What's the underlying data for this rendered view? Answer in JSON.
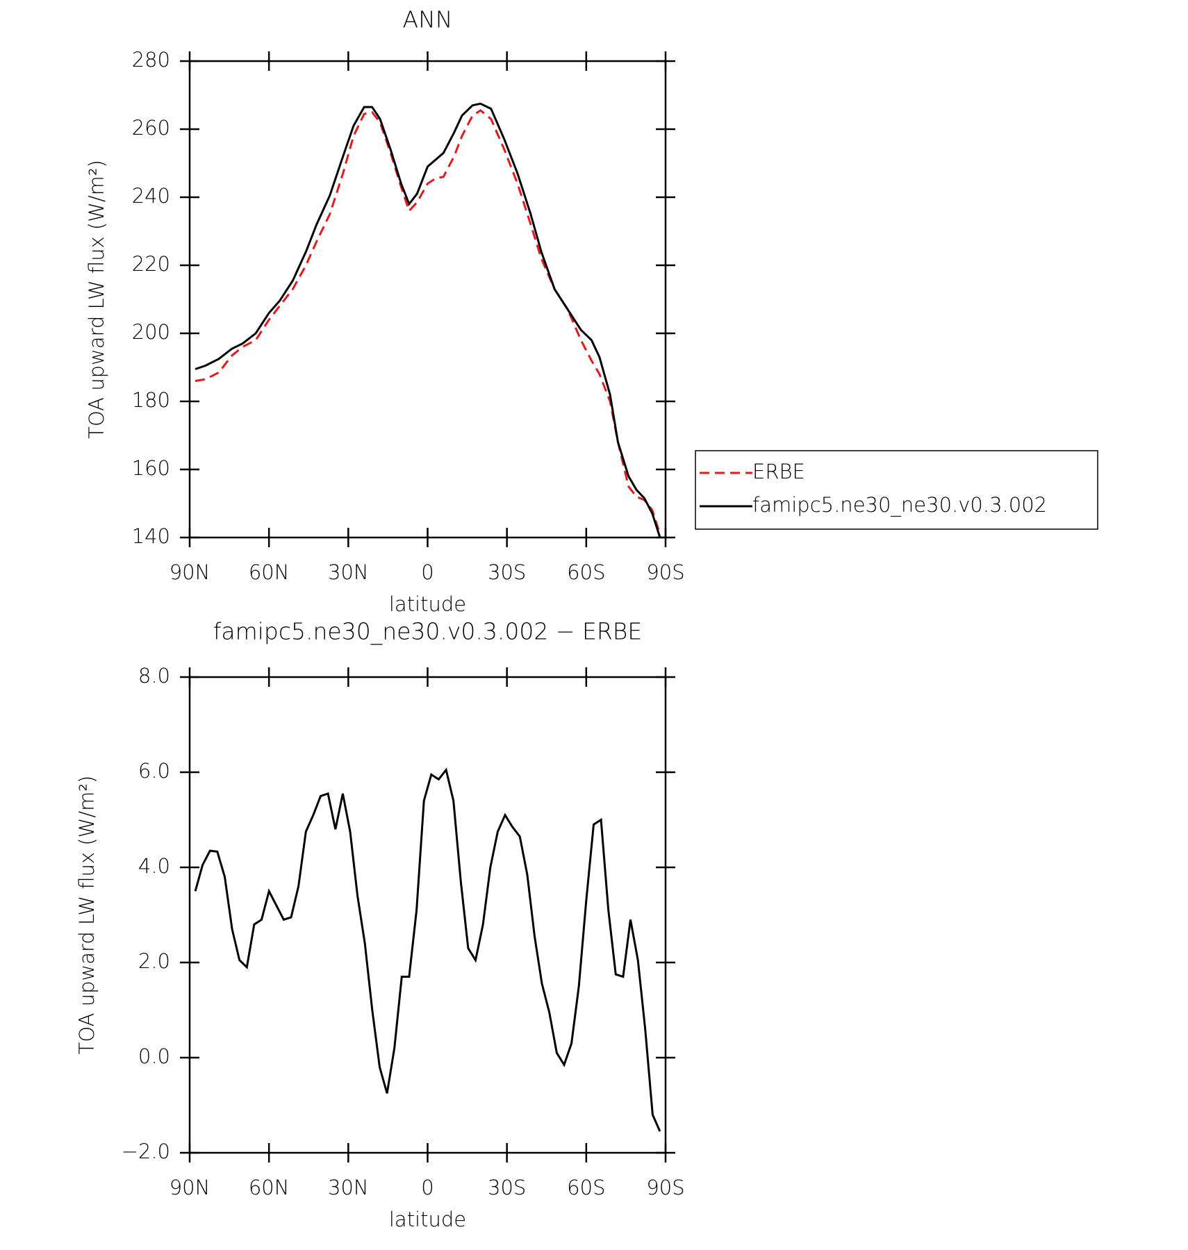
{
  "chart_data": [
    {
      "type": "line",
      "title": "ANN",
      "xlabel": "latitude",
      "ylabel": "TOA upward LW flux (W/m²)",
      "x": [
        87.9,
        84,
        79,
        74,
        70,
        65,
        60,
        56,
        51,
        46,
        42,
        37,
        32,
        28,
        24,
        21,
        18,
        14,
        10,
        7,
        4,
        0,
        -3,
        -6,
        -10,
        -13,
        -17,
        -20,
        -24,
        -29,
        -34,
        -39,
        -43,
        -48,
        -53,
        -58,
        -62,
        -65,
        -69,
        -72,
        -76,
        -79,
        -82,
        -85,
        -87.9
      ],
      "series": [
        {
          "name": "ERBE",
          "color": "#e3191c",
          "dash": "dashed",
          "values": [
            186,
            186.5,
            188.5,
            193.5,
            196,
            198,
            204,
            208,
            213,
            220,
            227,
            235,
            247,
            258,
            264.5,
            265,
            262,
            253,
            243,
            236,
            238.5,
            244,
            245.5,
            246,
            252,
            258,
            264,
            265.5,
            263,
            254,
            244,
            232,
            222,
            213,
            207,
            198,
            192,
            188,
            180,
            168,
            155,
            152,
            151,
            148,
            141
          ]
        },
        {
          "name": "famipc5.ne30_ne30.v0.3.002",
          "color": "#000000",
          "dash": "solid",
          "values": [
            189.5,
            190.5,
            192.5,
            195.5,
            197,
            200,
            206,
            209.5,
            215.5,
            224,
            232,
            240.5,
            252,
            261,
            266.5,
            266.5,
            263,
            254,
            244,
            238,
            241,
            249,
            251,
            253,
            259,
            264,
            267,
            267.5,
            266,
            257,
            247,
            235,
            224,
            213,
            207,
            201,
            198,
            193,
            182,
            168,
            158,
            154,
            151.5,
            147,
            140
          ]
        }
      ],
      "xlim": [
        90,
        -90
      ],
      "xticks": [
        {
          "value": 90,
          "label": "90N"
        },
        {
          "value": 60,
          "label": "60N"
        },
        {
          "value": 30,
          "label": "30N"
        },
        0,
        {
          "value": -30,
          "label": "30S"
        },
        {
          "value": -60,
          "label": "60S"
        },
        {
          "value": -90,
          "label": "90S"
        }
      ],
      "ylim": [
        140,
        280
      ],
      "yticks": [
        140,
        160,
        180,
        200,
        220,
        240,
        260,
        280
      ],
      "legend": "outside-right"
    },
    {
      "type": "line",
      "title": "famipc5.ne30_ne30.v0.3.002 − ERBE",
      "xlabel": "latitude",
      "ylabel": "TOA upward LW flux (W/m²)",
      "x": [
        87.86,
        85.1,
        82.31,
        79.53,
        76.74,
        73.95,
        71.16,
        68.37,
        65.58,
        62.79,
        60.0,
        57.21,
        54.42,
        51.63,
        48.84,
        46.04,
        43.25,
        40.46,
        37.67,
        34.88,
        32.09,
        29.3,
        26.51,
        23.72,
        20.93,
        18.14,
        15.35,
        12.56,
        9.77,
        6.98,
        4.19,
        1.4,
        -1.4,
        -4.19,
        -6.98,
        -9.77,
        -12.56,
        -15.35,
        -18.14,
        -20.93,
        -23.72,
        -26.51,
        -29.3,
        -32.09,
        -34.88,
        -37.67,
        -40.46,
        -43.25,
        -46.04,
        -48.84,
        -51.63,
        -54.42,
        -57.21,
        -60.0,
        -62.79,
        -65.58,
        -68.37,
        -71.16,
        -73.95,
        -76.74,
        -79.53,
        -82.31,
        -85.1,
        -87.86
      ],
      "series": [
        {
          "color": "#000000",
          "dash": "solid",
          "values": [
            3.5,
            4.05,
            4.35,
            4.33,
            3.8,
            2.7,
            2.05,
            1.9,
            2.8,
            2.9,
            3.5,
            3.2,
            2.9,
            2.95,
            3.6,
            4.75,
            5.1,
            5.5,
            5.55,
            4.8,
            5.55,
            4.75,
            3.4,
            2.4,
            1.0,
            -0.2,
            -0.75,
            0.2,
            1.7,
            1.7,
            3.1,
            5.4,
            5.95,
            5.85,
            6.05,
            5.4,
            3.7,
            2.3,
            2.05,
            2.8,
            4.0,
            4.75,
            5.1,
            4.85,
            4.65,
            3.85,
            2.55,
            1.55,
            0.95,
            0.1,
            -0.15,
            0.3,
            1.5,
            3.3,
            4.9,
            5.0,
            3.1,
            1.75,
            1.7,
            2.9,
            2.05,
            0.6,
            -1.2,
            -1.55
          ]
        }
      ],
      "xlim": [
        90,
        -90
      ],
      "xticks": [
        {
          "value": 90,
          "label": "90N"
        },
        {
          "value": 60,
          "label": "60N"
        },
        {
          "value": 30,
          "label": "30N"
        },
        0,
        {
          "value": -30,
          "label": "30S"
        },
        {
          "value": -60,
          "label": "60S"
        },
        {
          "value": -90,
          "label": "90S"
        }
      ],
      "ylim": [
        -2,
        8
      ],
      "yticks": [
        {
          "value": -2,
          "label": "−2.0"
        },
        {
          "value": 0,
          "label": "0.0"
        },
        {
          "value": 2,
          "label": "2.0"
        },
        {
          "value": 4,
          "label": "4.0"
        },
        {
          "value": 6,
          "label": "6.0"
        },
        {
          "value": 8,
          "label": "8.0"
        }
      ]
    }
  ]
}
